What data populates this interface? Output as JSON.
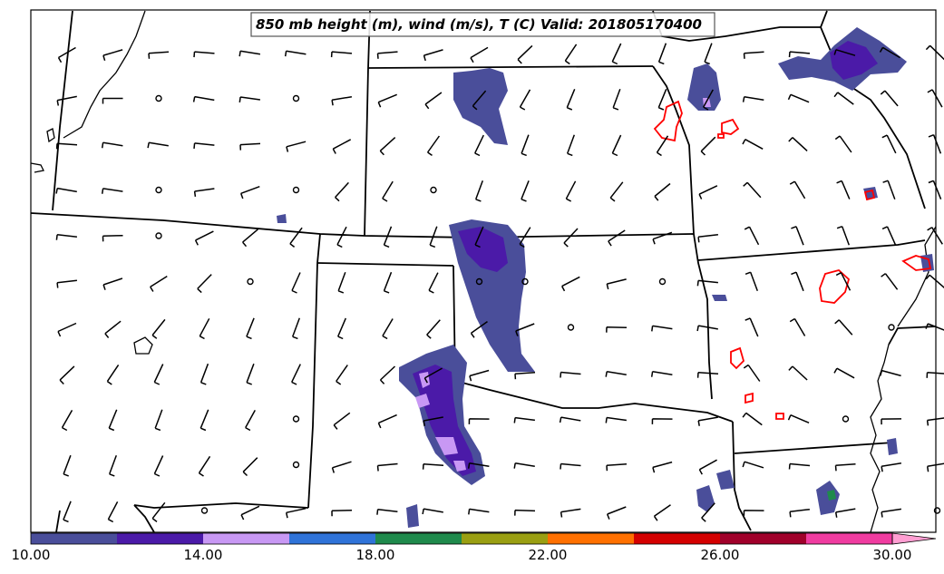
{
  "map": {
    "title": "850 mb height (m), wind (m/s), T (C) Valid: 201805170400",
    "colors": {
      "border": "#000000",
      "temp_contour": "#ff0000",
      "fill_low": "#4a4e9a",
      "fill_mid": "#4b1aa8",
      "fill_high": "#c898f4"
    }
  },
  "colorbar": {
    "colors": [
      "#4a4e9a",
      "#4b1aa8",
      "#c898f4",
      "#2f73d8",
      "#1f8a4c",
      "#9a9f12",
      "#ff7000",
      "#d40000",
      "#a0002a",
      "#f03ca0",
      "#ff9ed2"
    ],
    "tick_labels": [
      "10.00",
      "14.00",
      "18.00",
      "22.00",
      "26.00",
      "30.00"
    ]
  }
}
